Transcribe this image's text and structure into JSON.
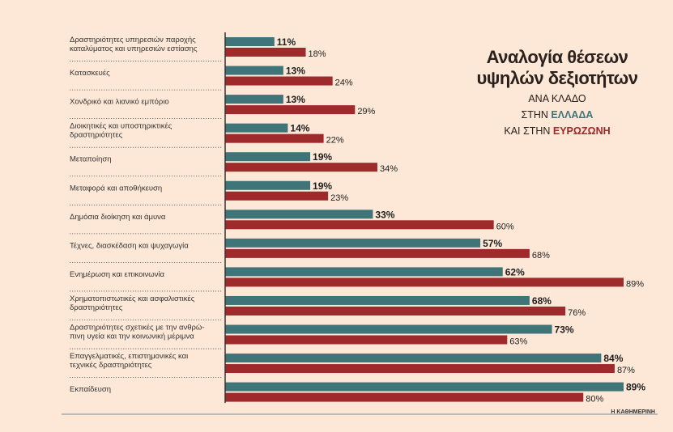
{
  "title": {
    "line1": "Αναλογία θέσεων",
    "line2": "υψηλών δεξιοτήτων",
    "sub1": "ΑΝΑ ΚΛΑΔΟ",
    "sub2_prefix": "ΣΤΗΝ ",
    "sub2_highlight": "ΕΛΛΑΔΑ",
    "sub3_prefix": "ΚΑΙ ΣΤΗΝ ",
    "sub3_highlight": "ΕΥΡΩΖΩΝΗ"
  },
  "footer": "Η ΚΑΘΗΜΕΡΙΝΗ",
  "colors": {
    "greece": "#3f7479",
    "eurozone": "#9e2a2b",
    "background": "#fde8d7"
  },
  "chart_data": {
    "type": "bar",
    "orientation": "horizontal",
    "unit": "%",
    "categories": [
      [
        "Δραστηριότητες υπηρεσιών παροχής",
        "καταλύματος και υπηρεσιών εστίασης"
      ],
      [
        "Κατασκευές"
      ],
      [
        "Χονδρικό και λιανικό εμπόριο"
      ],
      [
        "Διοικητικές και υποστηρικτικές",
        "δραστηριότητες"
      ],
      [
        "Μεταποίηση"
      ],
      [
        "Μεταφορά και αποθήκευση"
      ],
      [
        "Δημόσια διοίκηση και άμυνα"
      ],
      [
        "Τέχνες, διασκέδαση και ψυχαγωγία"
      ],
      [
        "Ενημέρωση και επικοινωνία"
      ],
      [
        "Χρηματοπιστωτικές και ασφαλιστικές",
        "δραστηριότητες"
      ],
      [
        "Δραστηριότητες σχετικές με την ανθρώ-",
        "πινη υγεία και την κοινωνική μέριμνα"
      ],
      [
        "Επαγγελματικές, επιστημονικές και",
        "τεχνικές δραστηριότητες"
      ],
      [
        "Εκπαίδευση"
      ]
    ],
    "series": [
      {
        "name": "ΕΛΛΑΔΑ",
        "values": [
          11,
          13,
          13,
          14,
          19,
          19,
          33,
          57,
          62,
          68,
          73,
          84,
          89
        ]
      },
      {
        "name": "ΕΥΡΩΖΩΝΗ",
        "values": [
          18,
          24,
          29,
          22,
          34,
          23,
          60,
          68,
          89,
          76,
          63,
          87,
          80
        ]
      }
    ],
    "xlim": [
      0,
      100
    ],
    "grid": false,
    "legend": "in title"
  }
}
